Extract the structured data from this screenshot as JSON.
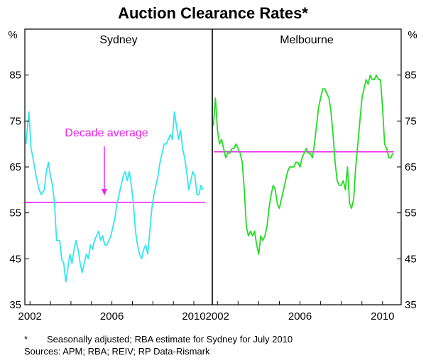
{
  "chart_data": {
    "type": "line",
    "title": "Auction Clearance Rates*",
    "unit_label": "%",
    "ylim": [
      35,
      95
    ],
    "yticks": [
      35,
      45,
      55,
      65,
      75,
      85
    ],
    "xlim": [
      2001.75,
      2010.9
    ],
    "xticks": [
      2002,
      2006,
      2010
    ],
    "xtick_labels": [
      "2002",
      "2006",
      "2010"
    ],
    "colors": {
      "sydney": "#33e6f0",
      "melbourne": "#22dd22",
      "average": "#ee22ee"
    },
    "panels": [
      {
        "name": "Sydney",
        "series_color": "sydney",
        "decade_average": 57.3,
        "annotation": "Decade average",
        "x": [
          2001.8,
          2001.95,
          2002.05,
          2002.15,
          2002.3,
          2002.45,
          2002.55,
          2002.7,
          2002.8,
          2002.9,
          2003.0,
          2003.1,
          2003.2,
          2003.3,
          2003.45,
          2003.55,
          2003.65,
          2003.75,
          2003.85,
          2003.95,
          2004.05,
          2004.15,
          2004.25,
          2004.35,
          2004.45,
          2004.55,
          2004.65,
          2004.75,
          2004.85,
          2004.95,
          2005.05,
          2005.15,
          2005.25,
          2005.35,
          2005.45,
          2005.55,
          2005.65,
          2005.75,
          2005.85,
          2005.95,
          2006.05,
          2006.15,
          2006.25,
          2006.35,
          2006.45,
          2006.55,
          2006.65,
          2006.75,
          2006.85,
          2006.95,
          2007.05,
          2007.15,
          2007.25,
          2007.35,
          2007.45,
          2007.55,
          2007.65,
          2007.75,
          2007.85,
          2007.95,
          2008.05,
          2008.15,
          2008.25,
          2008.35,
          2008.45,
          2008.55,
          2008.65,
          2008.75,
          2008.85,
          2008.95,
          2009.05,
          2009.15,
          2009.25,
          2009.35,
          2009.45,
          2009.55,
          2009.65,
          2009.75,
          2009.85,
          2009.95,
          2010.05,
          2010.15,
          2010.25,
          2010.35,
          2010.45
        ],
        "values": [
          70,
          77,
          69,
          67,
          63,
          60,
          59,
          60,
          64,
          66,
          63,
          61,
          57,
          49,
          49,
          45,
          44,
          40,
          43,
          46,
          44,
          47,
          49,
          47,
          44,
          42,
          44,
          46,
          45,
          48,
          47,
          49,
          50,
          51,
          49,
          50,
          48,
          48,
          49,
          50,
          52,
          54,
          57,
          59,
          61,
          63,
          64,
          62,
          64,
          61,
          57,
          51,
          48,
          46,
          45,
          47,
          48,
          46,
          51,
          56,
          59,
          61,
          63,
          66,
          68,
          70,
          70,
          71,
          72,
          71,
          77,
          74,
          71,
          73,
          69,
          67,
          64,
          60,
          62,
          64,
          63,
          59,
          59,
          61,
          60
        ]
      },
      {
        "name": "Melbourne",
        "series_color": "melbourne",
        "decade_average": 68.3,
        "x": [
          2001.8,
          2001.9,
          2002.0,
          2002.1,
          2002.2,
          2002.3,
          2002.4,
          2002.5,
          2002.6,
          2002.7,
          2002.8,
          2002.9,
          2003.0,
          2003.1,
          2003.2,
          2003.3,
          2003.4,
          2003.5,
          2003.6,
          2003.7,
          2003.8,
          2003.9,
          2004.0,
          2004.1,
          2004.2,
          2004.3,
          2004.4,
          2004.5,
          2004.6,
          2004.7,
          2004.8,
          2004.9,
          2005.0,
          2005.1,
          2005.2,
          2005.3,
          2005.4,
          2005.5,
          2005.6,
          2005.7,
          2005.8,
          2005.9,
          2006.0,
          2006.1,
          2006.2,
          2006.3,
          2006.4,
          2006.5,
          2006.6,
          2006.7,
          2006.8,
          2006.9,
          2007.0,
          2007.1,
          2007.2,
          2007.3,
          2007.4,
          2007.5,
          2007.6,
          2007.7,
          2007.8,
          2007.9,
          2008.0,
          2008.1,
          2008.2,
          2008.3,
          2008.4,
          2008.5,
          2008.6,
          2008.7,
          2008.8,
          2008.9,
          2009.0,
          2009.1,
          2009.2,
          2009.3,
          2009.4,
          2009.5,
          2009.6,
          2009.7,
          2009.8,
          2009.9,
          2010.0,
          2010.1,
          2010.2,
          2010.3,
          2010.4,
          2010.5
        ],
        "values": [
          74,
          80,
          73,
          70,
          71,
          69,
          67,
          68,
          68,
          69,
          69,
          70,
          69,
          68,
          66,
          60,
          52,
          50,
          51,
          50,
          51,
          48,
          46,
          50,
          49,
          50,
          52,
          56,
          59,
          61,
          60,
          57,
          56,
          58,
          60,
          62,
          64,
          65,
          65,
          65,
          66,
          66,
          65,
          67,
          68,
          69,
          68,
          68,
          67,
          70,
          74,
          78,
          80,
          82,
          82,
          81,
          80,
          77,
          72,
          66,
          62,
          61,
          61,
          62,
          60,
          65,
          57,
          56,
          58,
          65,
          70,
          75,
          80,
          82,
          84,
          83,
          85,
          84,
          84,
          85,
          84,
          84,
          78,
          70,
          69,
          67,
          67,
          68
        ]
      }
    ],
    "footnote_mark": "*",
    "footnote_text": "Seasonally adjusted; RBA estimate for Sydney for July 2010",
    "sources": "Sources: APM; RBA; REIV; RP Data-Rismark"
  }
}
